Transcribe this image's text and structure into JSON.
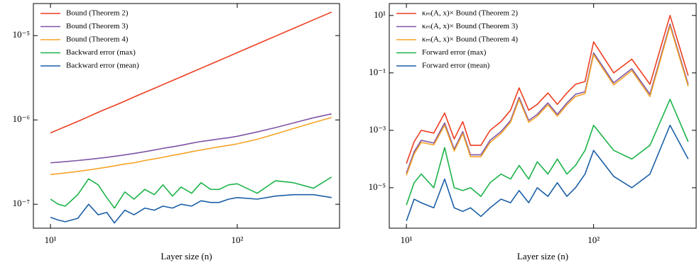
{
  "chart_data": [
    {
      "type": "line",
      "x_scale": "log",
      "y_scale": "log",
      "legend": "upper-left",
      "xlabel": "Layer size (n)",
      "x": [
        10,
        11,
        12,
        14,
        16,
        18,
        20,
        22,
        25,
        28,
        32,
        36,
        40,
        45,
        50,
        57,
        64,
        72,
        80,
        90,
        100,
        128,
        160,
        200,
        256,
        320
      ],
      "xlim": [
        8.1,
        353
      ],
      "ylim": [
        5.2e-08,
        2.4e-05
      ],
      "xticks": [
        {
          "value": 10,
          "label": "10¹"
        },
        {
          "value": 100,
          "label": "10²"
        }
      ],
      "yticks": [
        {
          "value": 1e-07,
          "label": "10⁻⁷"
        },
        {
          "value": 1e-06,
          "label": "10⁻⁶"
        },
        {
          "value": 1e-05,
          "label": "10⁻⁵"
        }
      ],
      "series": [
        {
          "name": "Bound (Theorem 2)",
          "color": "#ee3d1f",
          "values": [
            7e-07,
            7.67e-07,
            8.32e-07,
            9.6e-07,
            1.094e-06,
            1.23e-06,
            1.36e-06,
            1.48e-06,
            1.67e-06,
            1.87e-06,
            2.12e-06,
            2.37e-06,
            2.62e-06,
            2.93e-06,
            3.24e-06,
            3.67e-06,
            4.1e-06,
            4.59e-06,
            5.07e-06,
            5.67e-06,
            6.28e-06,
            7.95e-06,
            9.84e-06,
            1.217e-05,
            1.54e-05,
            1.9e-05
          ]
        },
        {
          "name": "Bound (Theorem 3)",
          "color": "#7f55a6",
          "values": [
            3.1e-07,
            3.15e-07,
            3.2e-07,
            3.3e-07,
            3.4e-07,
            3.5e-07,
            3.6e-07,
            3.7e-07,
            3.85e-07,
            4e-07,
            4.2e-07,
            4.4e-07,
            4.6e-07,
            4.8e-07,
            5e-07,
            5.3e-07,
            5.55e-07,
            5.75e-07,
            5.95e-07,
            6.15e-07,
            6.4e-07,
            7.2e-07,
            8.1e-07,
            9.2e-07,
            1.06e-06,
            1.18e-06
          ]
        },
        {
          "name": "Bound (Theorem 4)",
          "color": "#f6a326",
          "values": [
            2.25e-07,
            2.3e-07,
            2.35e-07,
            2.45e-07,
            2.55e-07,
            2.65e-07,
            2.75e-07,
            2.85e-07,
            3e-07,
            3.1e-07,
            3.3e-07,
            3.45e-07,
            3.6e-07,
            3.8e-07,
            3.95e-07,
            4.2e-07,
            4.4e-07,
            4.6e-07,
            4.8e-07,
            5e-07,
            5.2e-07,
            5.9e-07,
            6.8e-07,
            7.9e-07,
            9.3e-07,
            1.07e-06
          ]
        },
        {
          "name": "Backward error (max)",
          "color": "#1db34a",
          "values": [
            1.15e-07,
            1e-07,
            9.5e-08,
            1.3e-07,
            2e-07,
            1.7e-07,
            1.2e-07,
            9e-08,
            1.4e-07,
            1.15e-07,
            1.5e-07,
            1.3e-07,
            1.7e-07,
            1.25e-07,
            1.6e-07,
            1.35e-07,
            1.8e-07,
            1.5e-07,
            1.5e-07,
            1.7e-07,
            1.75e-07,
            1.35e-07,
            1.9e-07,
            1.8e-07,
            1.55e-07,
            2.1e-07
          ]
        },
        {
          "name": "Backward error (mean)",
          "color": "#1b5fa6",
          "values": [
            7e-08,
            6.5e-08,
            6.2e-08,
            6.8e-08,
            1e-07,
            7.5e-08,
            8e-08,
            6e-08,
            8.5e-08,
            7.5e-08,
            9e-08,
            8.5e-08,
            9.5e-08,
            9e-08,
            1e-07,
            9.5e-08,
            1.1e-07,
            1.05e-07,
            1.05e-07,
            1.15e-07,
            1.2e-07,
            1.15e-07,
            1.25e-07,
            1.3e-07,
            1.3e-07,
            1.2e-07
          ]
        }
      ]
    },
    {
      "type": "line",
      "x_scale": "log",
      "y_scale": "log",
      "legend": "upper-left",
      "xlabel": "Layer size (n)",
      "x": [
        10,
        11,
        12,
        14,
        16,
        18,
        20,
        22,
        25,
        28,
        32,
        36,
        40,
        45,
        50,
        57,
        64,
        72,
        80,
        90,
        100,
        128,
        160,
        200,
        256,
        320
      ],
      "xlim": [
        8.1,
        353
      ],
      "ylim": [
        3.9e-07,
        26
      ],
      "xticks": [
        {
          "value": 10,
          "label": "10¹"
        },
        {
          "value": 100,
          "label": "10²"
        }
      ],
      "yticks": [
        {
          "value": 1e-05,
          "label": "10⁻⁵"
        },
        {
          "value": 0.001,
          "label": "10⁻³"
        },
        {
          "value": 0.1,
          "label": "10⁻¹"
        },
        {
          "value": 10,
          "label": "10¹"
        }
      ],
      "series": [
        {
          "name": "κₘ(A, x)× Bound (Theorem 2)",
          "color": "#ee3d1f",
          "values": [
            7e-05,
            0.0004,
            0.001,
            0.0008,
            0.004,
            0.0005,
            0.002,
            0.0003,
            0.0003,
            0.001,
            0.002,
            0.005,
            0.03,
            0.005,
            0.008,
            0.02,
            0.008,
            0.02,
            0.04,
            0.05,
            1.2,
            0.1,
            0.3,
            0.04,
            10,
            0.08
          ]
        },
        {
          "name": "κₘ(A, x)× Bound (Theorem 3)",
          "color": "#7f55a6",
          "values": [
            3.2e-05,
            0.00018,
            0.00045,
            0.00036,
            0.0018,
            0.00022,
            0.0009,
            0.00014,
            0.00014,
            0.00045,
            0.0009,
            0.0022,
            0.014,
            0.0022,
            0.0036,
            0.009,
            0.0036,
            0.009,
            0.018,
            0.022,
            0.5,
            0.045,
            0.14,
            0.018,
            5,
            0.04
          ]
        },
        {
          "name": "κₘ(A, x)× Bound (Theorem 4)",
          "color": "#f6a326",
          "values": [
            2.7e-05,
            0.00015,
            0.00038,
            0.00031,
            0.0015,
            0.00019,
            0.00077,
            0.00012,
            0.00012,
            0.00038,
            0.00077,
            0.0019,
            0.012,
            0.0019,
            0.0031,
            0.0077,
            0.0031,
            0.0077,
            0.015,
            0.019,
            0.43,
            0.038,
            0.12,
            0.015,
            4.3,
            0.034
          ]
        },
        {
          "name": "Forward error (max)",
          "color": "#1db34a",
          "values": [
            2.5e-06,
            1.5e-05,
            3e-05,
            1e-05,
            0.00025,
            1e-05,
            8e-06,
            1e-05,
            5e-06,
            1.5e-05,
            3e-05,
            2e-05,
            6e-05,
            2e-05,
            8e-05,
            3e-05,
            0.0001,
            3e-05,
            6e-05,
            0.0002,
            0.0015,
            0.0002,
            0.0001,
            0.0003,
            0.012,
            0.0004
          ]
        },
        {
          "name": "Forward error (mean)",
          "color": "#1b5fa6",
          "values": [
            7e-07,
            4e-06,
            3e-06,
            2e-06,
            2e-05,
            2e-06,
            1.5e-06,
            2e-06,
            1e-06,
            2e-06,
            4e-06,
            3e-06,
            8e-06,
            3e-06,
            1e-05,
            5e-06,
            1.5e-05,
            5e-06,
            1e-05,
            3e-05,
            0.0002,
            2.5e-05,
            1e-05,
            3e-05,
            0.0015,
            0.0001
          ]
        }
      ]
    }
  ]
}
